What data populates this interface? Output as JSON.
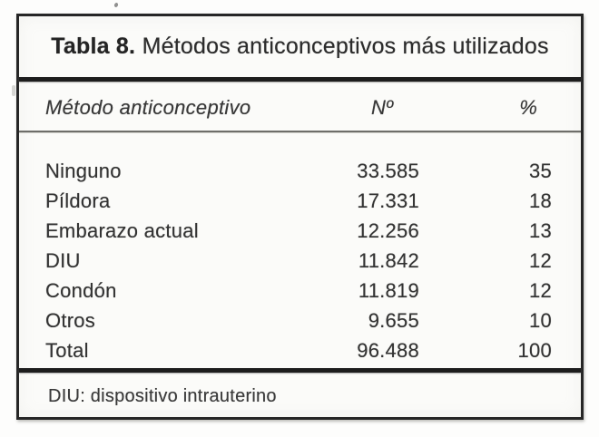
{
  "table": {
    "title": {
      "bold": "Tabla 8.",
      "rest": "Métodos anticonceptivos más utilizados"
    },
    "columns": {
      "method": "Método anticonceptivo",
      "count": "Nº",
      "percent": "%"
    },
    "rows": [
      {
        "method": "Ninguno",
        "count": "33.585",
        "percent": "35"
      },
      {
        "method": "Píldora",
        "count": "17.331",
        "percent": "18"
      },
      {
        "method": "Embarazo actual",
        "count": "12.256",
        "percent": "13"
      },
      {
        "method": "DIU",
        "count": "11.842",
        "percent": "12"
      },
      {
        "method": "Condón",
        "count": "11.819",
        "percent": "12"
      },
      {
        "method": "Otros",
        "count": "9.655",
        "percent": "10"
      },
      {
        "method": "Total",
        "count": "96.488",
        "percent": "100"
      }
    ],
    "footnote": "DIU: dispositivo intrauterino"
  },
  "colors": {
    "ink": "#333333",
    "border": "#262626",
    "rule_thick": "#1d1d1d",
    "rule_thin": "#6e6e6a",
    "paper": "#fbfbf9"
  }
}
